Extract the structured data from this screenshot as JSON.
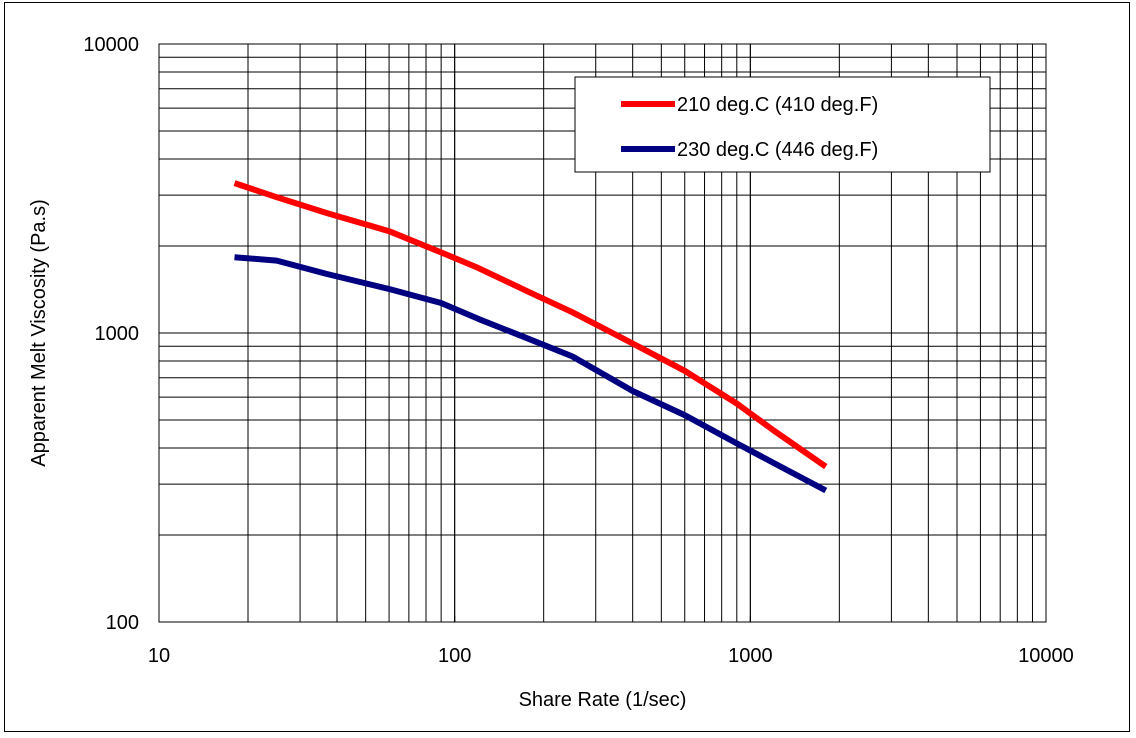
{
  "chart_data": {
    "type": "line",
    "title": "",
    "xlabel": "Share Rate (1/sec)",
    "ylabel": "Apparent Melt Viscosity (Pa.s)",
    "xscale": "log",
    "yscale": "log",
    "xlim": [
      10,
      10000
    ],
    "ylim": [
      100,
      10000
    ],
    "x_ticks": [
      "10",
      "100",
      "1000",
      "10000"
    ],
    "y_ticks": [
      "100",
      "1000",
      "10000"
    ],
    "grid": true,
    "legend_position": "top-right",
    "series": [
      {
        "name": "210 deg.C (410 deg.F)",
        "color": "#ff0000",
        "points": [
          [
            18,
            3300
          ],
          [
            25,
            2950
          ],
          [
            37,
            2600
          ],
          [
            60,
            2250
          ],
          [
            90,
            1900
          ],
          [
            120,
            1680
          ],
          [
            180,
            1380
          ],
          [
            250,
            1180
          ],
          [
            400,
            920
          ],
          [
            600,
            740
          ],
          [
            900,
            570
          ],
          [
            1200,
            460
          ],
          [
            1800,
            345
          ]
        ]
      },
      {
        "name": "230 deg.C (446 deg.F)",
        "color": "#000080",
        "points": [
          [
            18,
            1830
          ],
          [
            25,
            1780
          ],
          [
            37,
            1600
          ],
          [
            60,
            1420
          ],
          [
            90,
            1270
          ],
          [
            120,
            1120
          ],
          [
            180,
            950
          ],
          [
            250,
            830
          ],
          [
            400,
            630
          ],
          [
            600,
            520
          ],
          [
            900,
            415
          ],
          [
            1200,
            355
          ],
          [
            1800,
            285
          ]
        ]
      }
    ]
  }
}
